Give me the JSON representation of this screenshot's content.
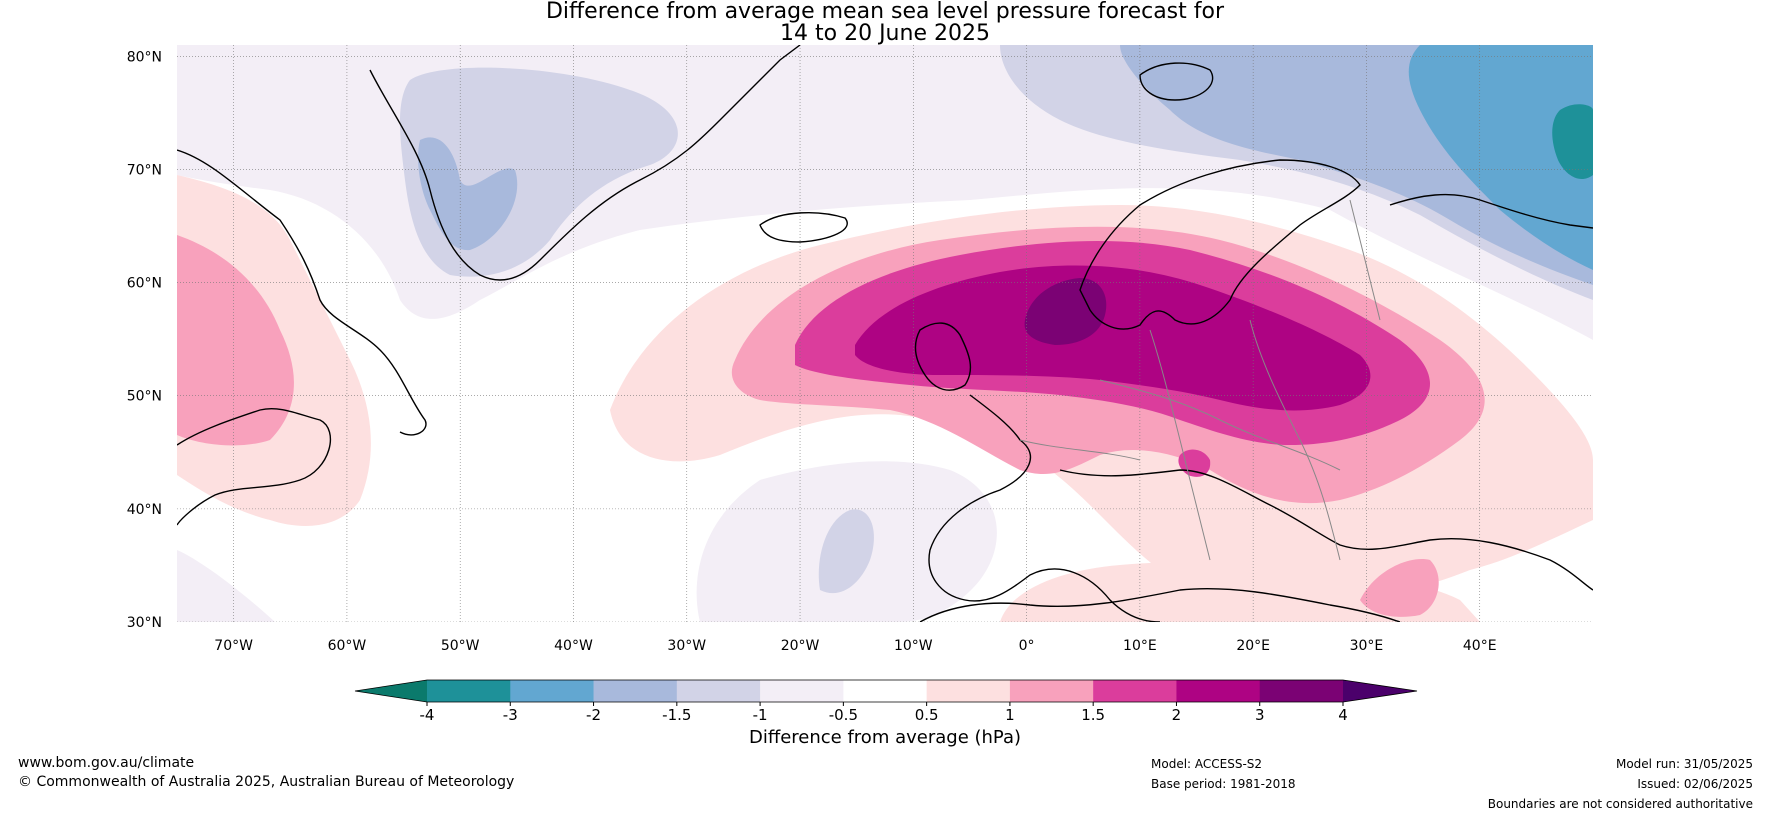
{
  "title": {
    "line1": "Difference from average mean sea level pressure forecast for",
    "line2": "14 to 20 June 2025"
  },
  "map": {
    "lat_labels": [
      "80°N",
      "70°N",
      "60°N",
      "50°N",
      "40°N",
      "30°N"
    ],
    "lon_labels": [
      "70°W",
      "60°W",
      "50°W",
      "40°W",
      "30°W",
      "20°W",
      "10°W",
      "0°",
      "10°E",
      "20°E",
      "30°E",
      "40°E"
    ],
    "extent": {
      "lon_min": -75,
      "lon_max": 50,
      "lat_min": 30,
      "lat_max": 81
    }
  },
  "colorbar": {
    "title": "Difference from average (hPa)",
    "tick_labels": [
      "-4",
      "-3",
      "-2",
      "-1.5",
      "-1",
      "-0.5",
      "0.5",
      "1",
      "1.5",
      "2",
      "3",
      "4"
    ],
    "colors": {
      "below_-4": "#0b7a6c",
      "-4_-3": "#1e9199",
      "-3_-2": "#62a7d1",
      "-2_-1.5": "#a8b9dc",
      "-1.5_-1": "#d2d3e7",
      "-1_-0.5": "#f3eef6",
      "-0.5_0.5": "#ffffff",
      "0.5_1": "#fde0e0",
      "1_1.5": "#f8a1bc",
      "1.5_2": "#db3d9c",
      "2_3": "#ae0383",
      "3_4": "#7b0274",
      "above_4": "#4b006b"
    }
  },
  "footer": {
    "website": "www.bom.gov.au/climate",
    "copyright": "© Commonwealth of Australia 2025, Australian Bureau of Meteorology",
    "model": "Model: ACCESS-S2",
    "base_period": "Base period: 1981-2018",
    "model_run": "Model run: 31/05/2025",
    "issued": "Issued: 02/06/2025",
    "boundaries": "Boundaries are not considered authoritative"
  }
}
